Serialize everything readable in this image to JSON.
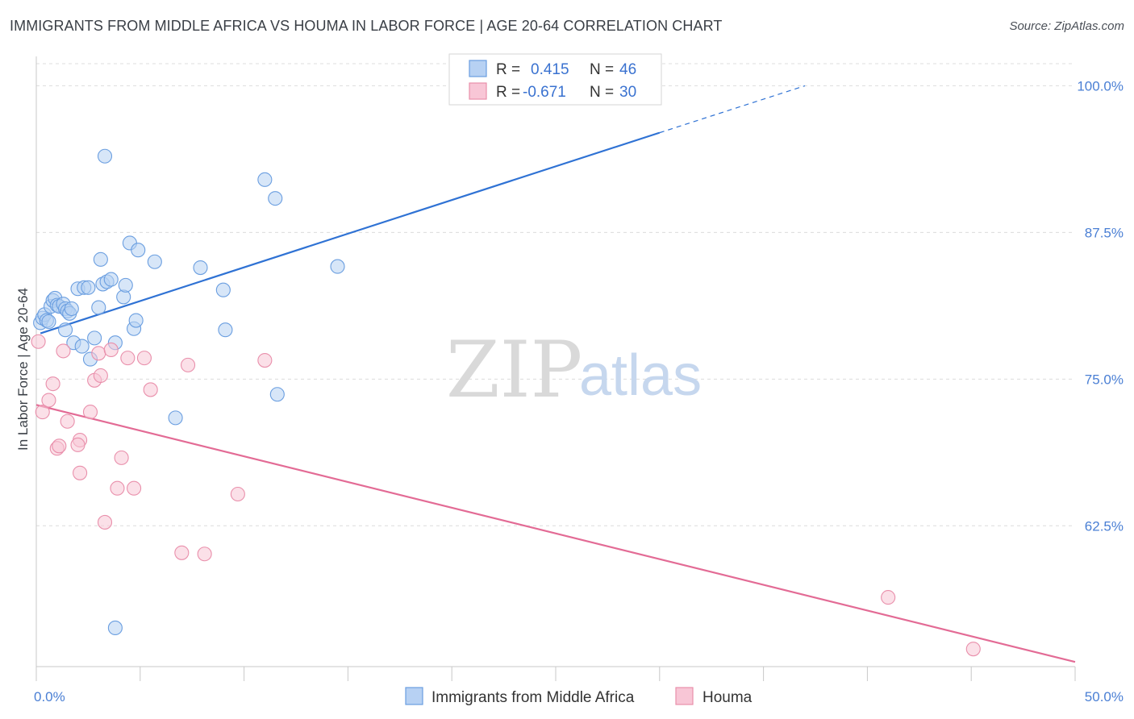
{
  "title": "IMMIGRANTS FROM MIDDLE AFRICA VS HOUMA IN LABOR FORCE | AGE 20-64 CORRELATION CHART",
  "source": "Source: ZipAtlas.com",
  "watermark": {
    "zip": "ZIP",
    "atlas": "atlas"
  },
  "colors": {
    "blue_fill": "#b7d1f3",
    "blue_stroke": "#6a9ee0",
    "blue_line": "#2f72d4",
    "pink_fill": "#f8c6d6",
    "pink_stroke": "#e98fab",
    "pink_line": "#e36b95",
    "grid": "#dcdcdc",
    "tick_label": "#4a7fd4"
  },
  "legend": {
    "rows": [
      {
        "r_label": "R =",
        "r_value": "0.415",
        "n_label": "N =",
        "n_value": "46"
      },
      {
        "r_label": "R =",
        "r_value": "-0.671",
        "n_label": "N =",
        "n_value": "30"
      }
    ]
  },
  "bottom_legend": [
    "Immigrants from Middle Africa",
    "Houma"
  ],
  "chart_data": {
    "type": "scatter",
    "xlabel": "",
    "ylabel": "In Labor Force | Age 20-64",
    "xlim": [
      0,
      50
    ],
    "ylim": [
      50.5,
      102.5
    ],
    "x_tick_labels": [
      "0.0%",
      "50.0%"
    ],
    "y_ticks": [
      62.5,
      75.0,
      87.5,
      100.0
    ],
    "y_tick_labels": [
      "62.5%",
      "75.0%",
      "87.5%",
      "100.0%"
    ],
    "grid": true,
    "legend_placement": "top-center",
    "series": [
      {
        "name": "Immigrants from Middle Africa",
        "color": "#6a9ee0",
        "points": [
          [
            0.2,
            79.8
          ],
          [
            0.3,
            80.2
          ],
          [
            0.4,
            80.5
          ],
          [
            0.5,
            80.0
          ],
          [
            0.6,
            79.9
          ],
          [
            0.7,
            81.2
          ],
          [
            0.8,
            81.7
          ],
          [
            0.9,
            81.9
          ],
          [
            1.0,
            81.3
          ],
          [
            1.1,
            81.2
          ],
          [
            1.3,
            81.4
          ],
          [
            1.4,
            81.0
          ],
          [
            1.5,
            80.8
          ],
          [
            1.6,
            80.6
          ],
          [
            1.7,
            81.0
          ],
          [
            1.4,
            79.2
          ],
          [
            1.8,
            78.1
          ],
          [
            2.0,
            82.7
          ],
          [
            2.2,
            77.8
          ],
          [
            2.3,
            82.8
          ],
          [
            2.5,
            82.8
          ],
          [
            2.6,
            76.7
          ],
          [
            2.8,
            78.5
          ],
          [
            3.0,
            81.1
          ],
          [
            3.1,
            85.2
          ],
          [
            3.2,
            83.1
          ],
          [
            3.4,
            83.3
          ],
          [
            3.6,
            83.5
          ],
          [
            3.8,
            78.1
          ],
          [
            4.2,
            82.0
          ],
          [
            4.3,
            83.0
          ],
          [
            4.5,
            86.6
          ],
          [
            4.7,
            79.3
          ],
          [
            4.8,
            80.0
          ],
          [
            4.9,
            86.0
          ],
          [
            5.7,
            85.0
          ],
          [
            6.7,
            71.7
          ],
          [
            7.9,
            84.5
          ],
          [
            9.0,
            82.6
          ],
          [
            9.1,
            79.2
          ],
          [
            11.0,
            92.0
          ],
          [
            11.5,
            90.4
          ],
          [
            11.6,
            73.7
          ],
          [
            14.5,
            84.6
          ],
          [
            3.3,
            94.0
          ],
          [
            3.8,
            53.8
          ]
        ]
      },
      {
        "name": "Houma",
        "color": "#e98fab",
        "points": [
          [
            0.1,
            78.2
          ],
          [
            0.3,
            72.2
          ],
          [
            0.6,
            73.2
          ],
          [
            0.8,
            74.6
          ],
          [
            1.0,
            69.1
          ],
          [
            1.1,
            69.3
          ],
          [
            1.3,
            77.4
          ],
          [
            1.5,
            71.4
          ],
          [
            2.1,
            69.8
          ],
          [
            2.0,
            69.4
          ],
          [
            2.1,
            67.0
          ],
          [
            2.6,
            72.2
          ],
          [
            2.8,
            74.9
          ],
          [
            3.0,
            77.2
          ],
          [
            3.1,
            75.3
          ],
          [
            3.6,
            77.5
          ],
          [
            3.3,
            62.8
          ],
          [
            3.9,
            65.7
          ],
          [
            4.1,
            68.3
          ],
          [
            4.4,
            76.8
          ],
          [
            4.7,
            65.7
          ],
          [
            5.2,
            76.8
          ],
          [
            5.5,
            74.1
          ],
          [
            7.0,
            60.2
          ],
          [
            7.3,
            76.2
          ],
          [
            8.1,
            60.1
          ],
          [
            9.7,
            65.2
          ],
          [
            11.0,
            76.6
          ],
          [
            41.0,
            56.4
          ],
          [
            45.1,
            52.0
          ]
        ]
      }
    ],
    "trend_lines": [
      {
        "series": "Immigrants from Middle Africa",
        "x": [
          0.2,
          30.0
        ],
        "y": [
          78.9,
          96.0
        ],
        "dashed_extension_to": [
          37.0,
          100.0
        ]
      },
      {
        "series": "Houma",
        "x": [
          0.0,
          50.0
        ],
        "y": [
          72.8,
          50.9
        ]
      }
    ]
  }
}
